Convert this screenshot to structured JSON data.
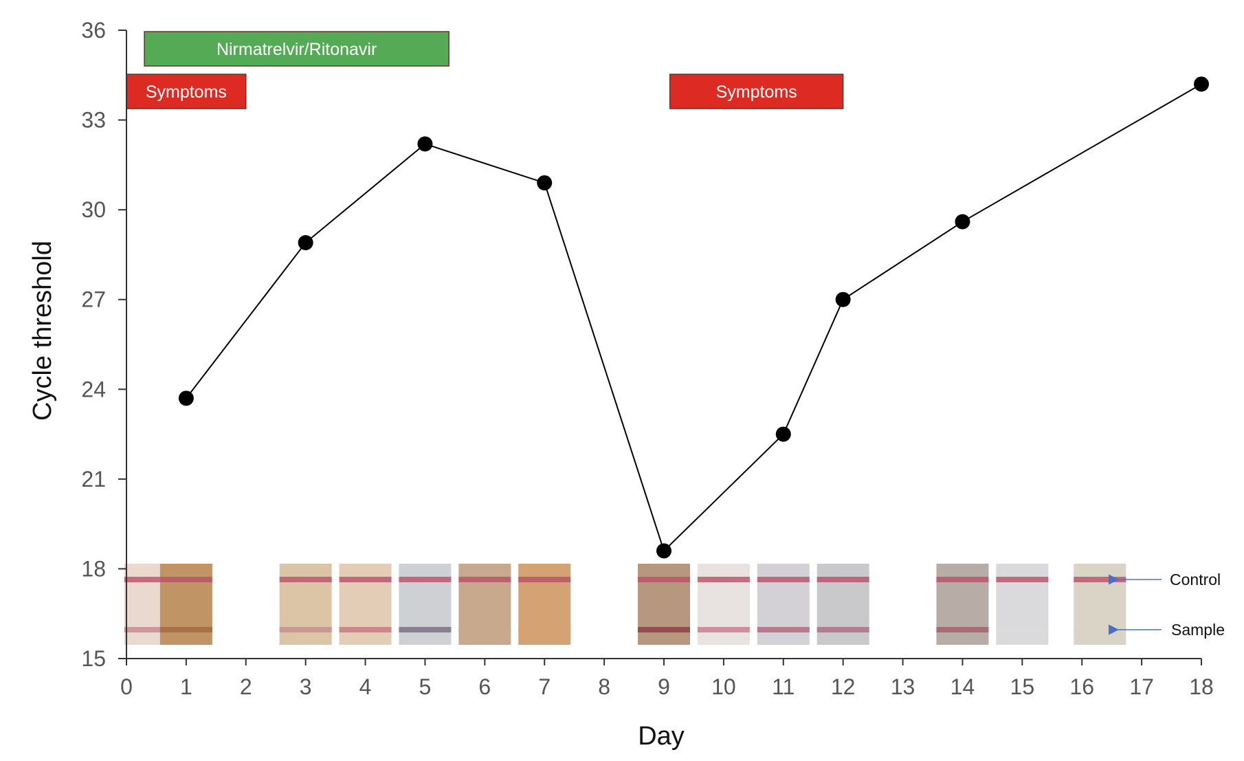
{
  "chart_data": {
    "type": "line",
    "xlabel": "Day",
    "ylabel": "Cycle threshold",
    "xlim": [
      0,
      18
    ],
    "ylim": [
      15,
      36
    ],
    "x_ticks": [
      0,
      1,
      2,
      3,
      4,
      5,
      6,
      7,
      8,
      9,
      10,
      11,
      12,
      13,
      14,
      15,
      16,
      17,
      18
    ],
    "y_ticks": [
      15,
      18,
      21,
      24,
      27,
      30,
      33,
      36
    ],
    "series": [
      {
        "name": "Cycle threshold",
        "color": "#000000",
        "x": [
          1,
          3,
          5,
          7,
          9,
          11,
          12,
          14,
          18
        ],
        "y": [
          23.7,
          28.9,
          32.2,
          30.9,
          18.6,
          22.5,
          27.0,
          29.6,
          34.2
        ]
      }
    ],
    "annotations": [
      {
        "label": "Nirmatrelvir/Ritonavir",
        "x_start": 0.3,
        "x_end": 5.4,
        "row": 1,
        "color": "#55aa55"
      },
      {
        "label": "Symptoms",
        "x_start": 0.0,
        "x_end": 2.0,
        "row": 2,
        "color": "#dd2a22"
      },
      {
        "label": "Symptoms",
        "x_start": 9.1,
        "x_end": 12.0,
        "row": 2,
        "color": "#dd2a22"
      }
    ],
    "test_strip_days": [
      0.4,
      1,
      3,
      4,
      5,
      6,
      7,
      9,
      10,
      11,
      12,
      14,
      15,
      16.3
    ],
    "strip_legend": {
      "control_label": "Control",
      "sample_label": "Sample",
      "arrow_color": "#4a6fc7"
    }
  }
}
